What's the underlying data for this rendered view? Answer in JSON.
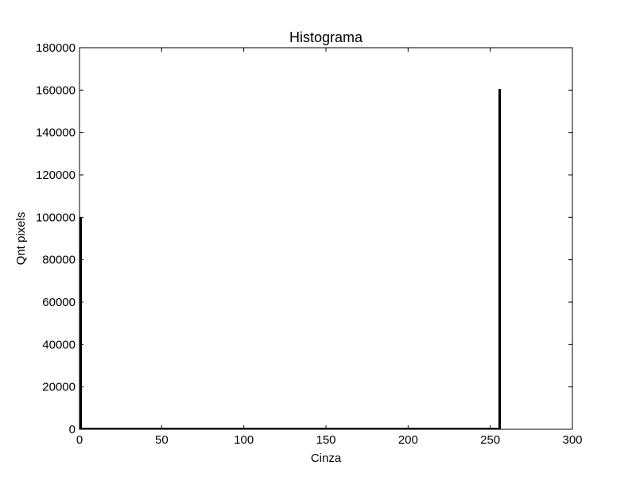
{
  "chart_data": {
    "type": "bar",
    "title": "Histograma",
    "xlabel": "Cinza",
    "ylabel": "Qnt pixels",
    "xlim": [
      0,
      300
    ],
    "ylim": [
      0,
      180000
    ],
    "xticks": [
      0,
      50,
      100,
      150,
      200,
      250,
      300
    ],
    "yticks": [
      0,
      20000,
      40000,
      60000,
      80000,
      100000,
      120000,
      140000,
      160000,
      180000
    ],
    "grid": false,
    "legend": "none",
    "bar_color": "#000000",
    "x": [
      0,
      255
    ],
    "values": [
      100000,
      160500
    ]
  }
}
